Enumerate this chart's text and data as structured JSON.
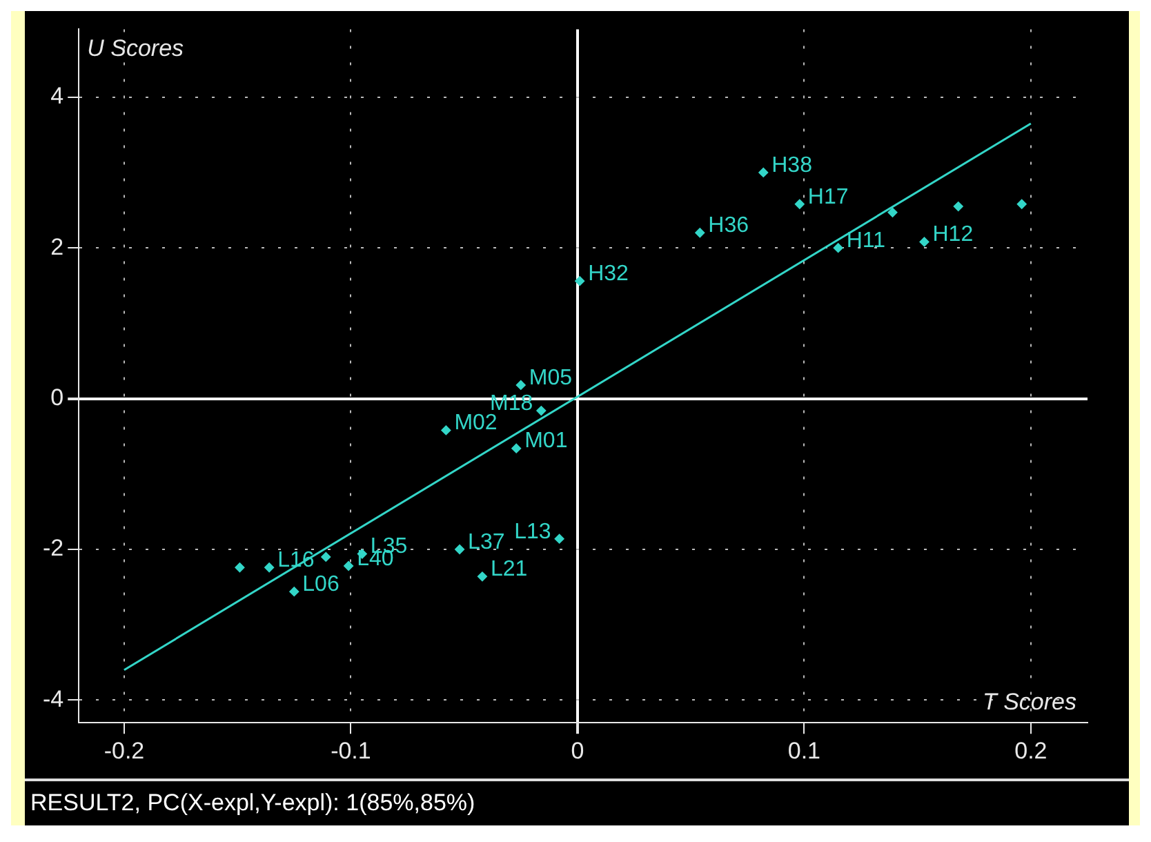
{
  "chart_data": {
    "type": "scatter",
    "xlabel": "T Scores",
    "ylabel": "U Scores",
    "annotations": [
      "RESULT2, PC(X-expl,Y-expl): 1(85%,85%)"
    ],
    "xlim": [
      -0.22,
      0.225
    ],
    "ylim": [
      -4.3,
      4.9
    ],
    "xticks": [
      -0.2,
      -0.1,
      0,
      0.1,
      0.2
    ],
    "yticks": [
      -4,
      -2,
      0,
      2,
      4
    ],
    "grid": true,
    "marker": "diamond",
    "series": [
      {
        "color": "#33d6c8",
        "x": [
          0.082,
          0.098,
          0.054,
          0.001,
          0.115,
          0.153,
          0.139,
          0.168,
          0.196,
          -0.025,
          -0.058,
          -0.016,
          -0.027,
          -0.008,
          -0.042,
          -0.052,
          -0.149,
          -0.136,
          -0.125,
          -0.095,
          -0.101,
          -0.111
        ],
        "values": [
          3.0,
          2.58,
          2.2,
          1.56,
          2.0,
          2.08,
          2.47,
          2.55,
          2.58,
          0.18,
          -0.42,
          -0.16,
          -0.66,
          -1.86,
          -2.36,
          -2.0,
          -2.24,
          -2.24,
          -2.56,
          -2.06,
          -2.22,
          -2.1
        ],
        "value_labels": [
          "H38",
          "H17",
          "H36",
          "H32",
          "H11",
          "H12",
          null,
          null,
          null,
          "M05",
          "M02",
          "M18",
          "M01",
          "L13",
          "L21",
          "L37",
          null,
          "L16",
          "L06",
          "L35",
          "L40",
          null
        ]
      },
      {
        "type": "line",
        "color": "#33d6c8",
        "marker": "none",
        "x": [
          -0.2,
          0.2
        ],
        "values": [
          -3.6,
          3.65
        ]
      }
    ]
  }
}
